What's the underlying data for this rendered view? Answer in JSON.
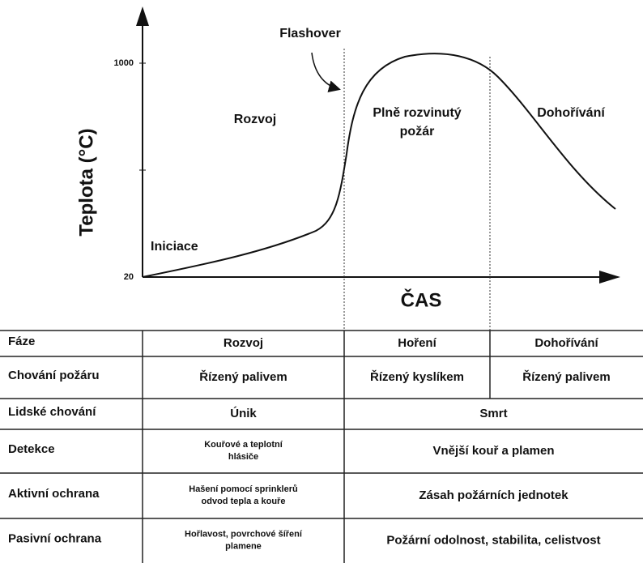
{
  "diagram": {
    "y_axis_label": "Teplota (°C)",
    "x_axis_label": "ČAS",
    "y_ticks": [
      "1000",
      "20"
    ],
    "annotations": {
      "flashover": "Flashover",
      "iniciace": "Iniciace",
      "rozvoj": "Rozvoj",
      "plne": [
        "Plně rozvinutý",
        "požár"
      ],
      "dohorivani": "Dohořívání"
    }
  },
  "table": {
    "rows": [
      [
        "Fáze",
        "Rozvoj",
        "Hoření",
        "Dohořívání"
      ],
      [
        "Chování požáru",
        "Řízený palivem",
        "Řízený kyslíkem",
        "Řízený palivem"
      ],
      [
        "Lidské chování",
        "Únik",
        "Smrt"
      ],
      [
        "Detekce",
        [
          "Kouřové a teplotní",
          "hlásiče"
        ],
        "Vnější kouř a plamen"
      ],
      [
        "Aktivní ochrana",
        [
          "Hašení pomocí sprinklerů",
          "odvod tepla a kouře"
        ],
        "Zásah požárních jednotek"
      ],
      [
        "Pasivní ochrana",
        [
          "Hořlavost, povrchové šíření",
          "plamene"
        ],
        "Požární odolnost, stabilita, celistvost"
      ]
    ]
  }
}
